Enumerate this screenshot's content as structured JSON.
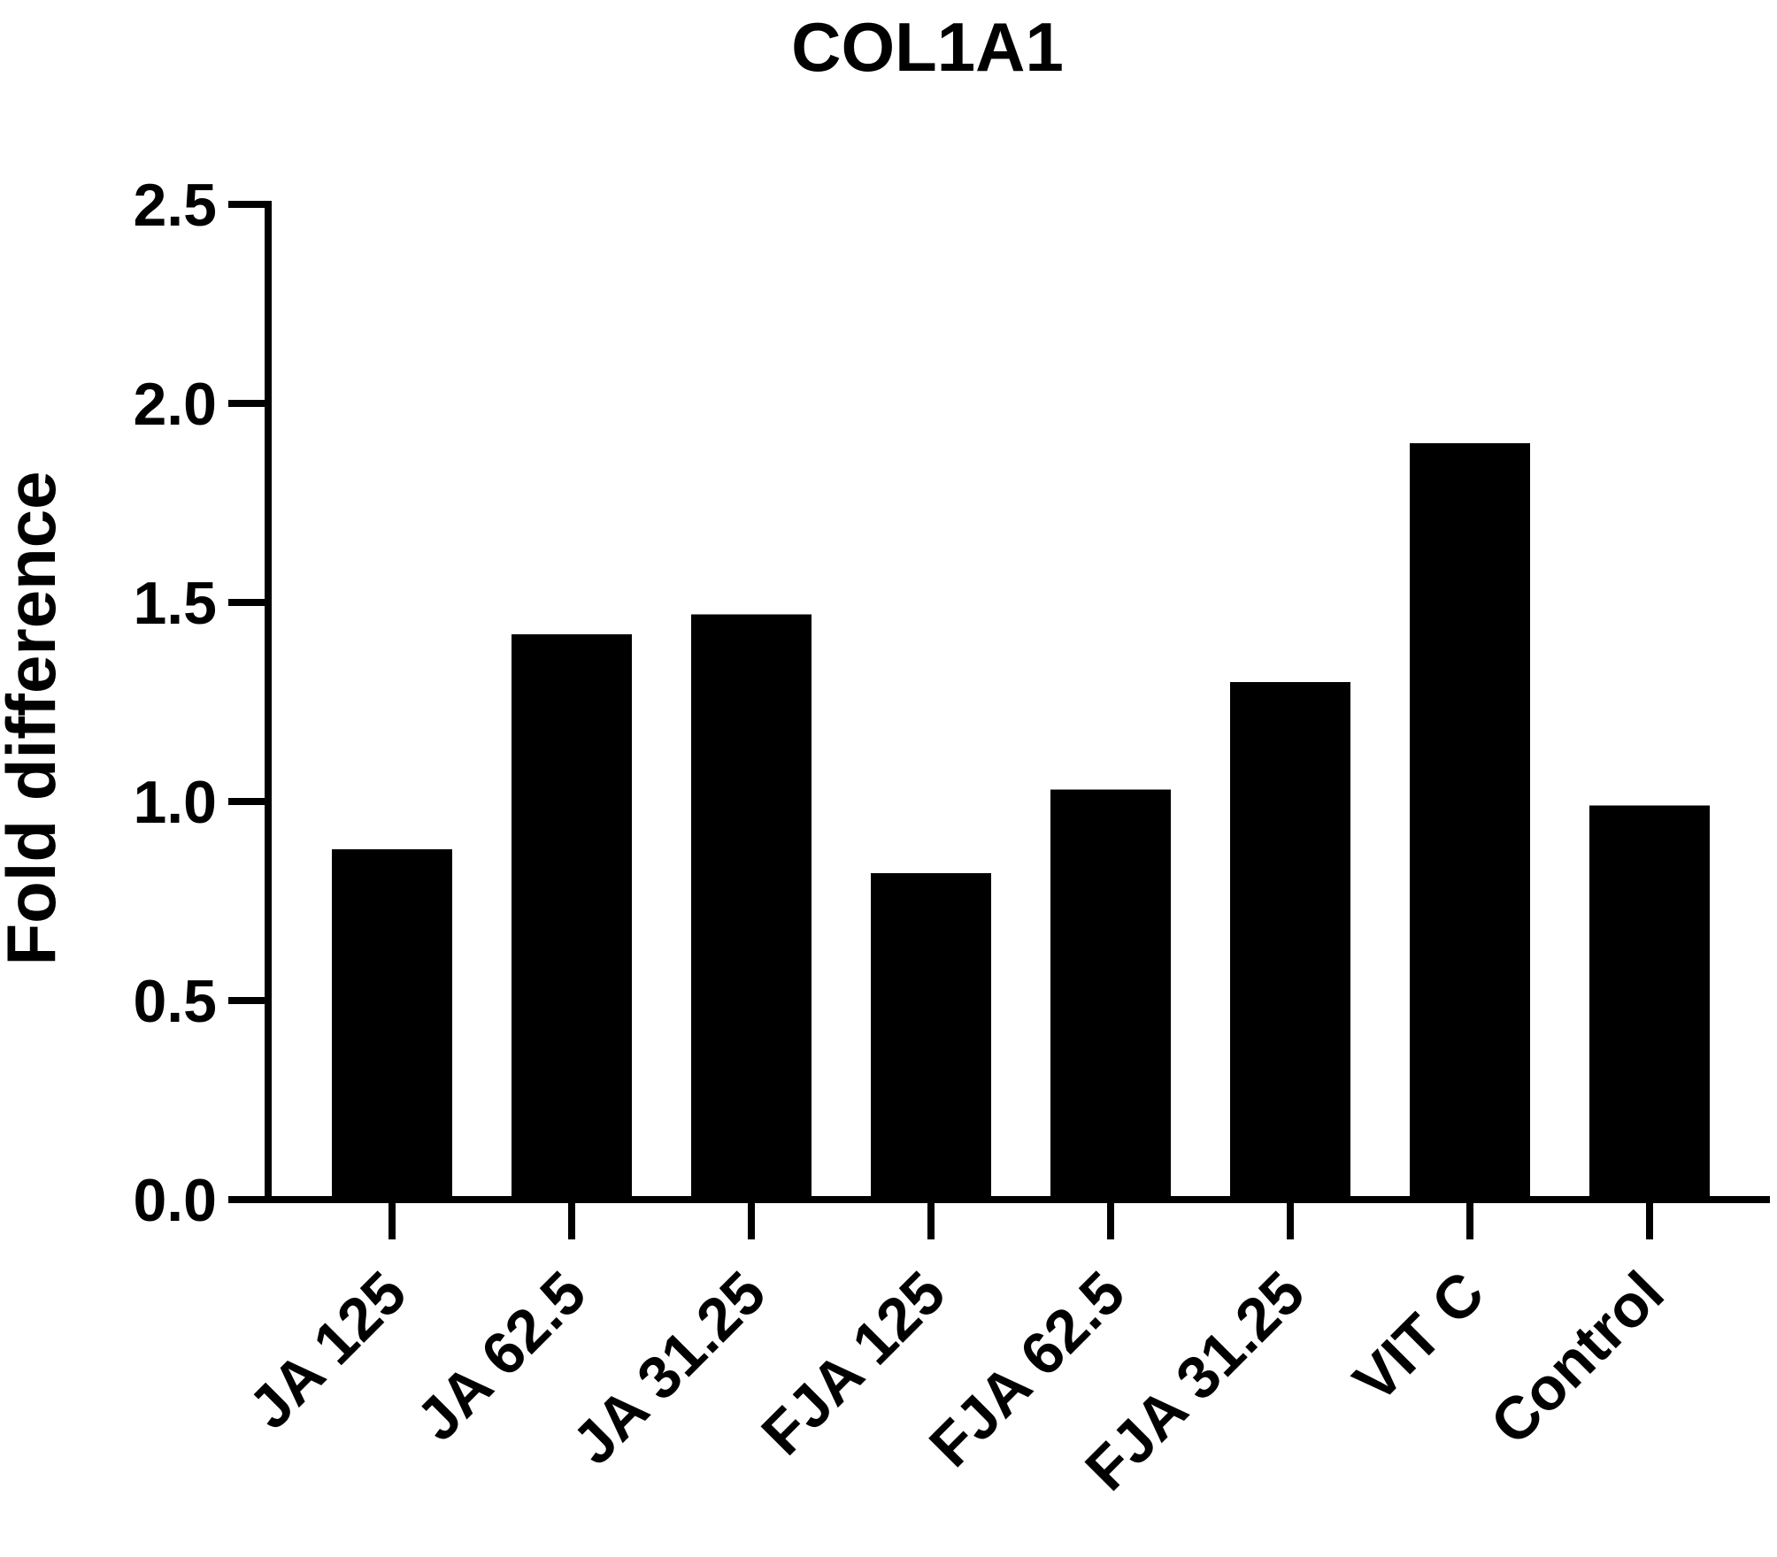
{
  "chart_data": {
    "type": "bar",
    "title": "COL1A1",
    "xlabel": "",
    "ylabel": "Fold difference",
    "categories": [
      "JA 125",
      "JA 62.5",
      "JA 31.25",
      "FJA 125",
      "FJA 62.5",
      "FJA 31.25",
      "VIT C",
      "Control"
    ],
    "values": [
      0.88,
      1.42,
      1.47,
      0.82,
      1.03,
      1.3,
      1.9,
      0.99
    ],
    "ylim": [
      0,
      2.5
    ],
    "yticks": [
      "0.0",
      "0.5",
      "1.0",
      "1.5",
      "2.0",
      "2.5"
    ],
    "grid": false,
    "legend": "none",
    "bar_color": "#000000"
  }
}
